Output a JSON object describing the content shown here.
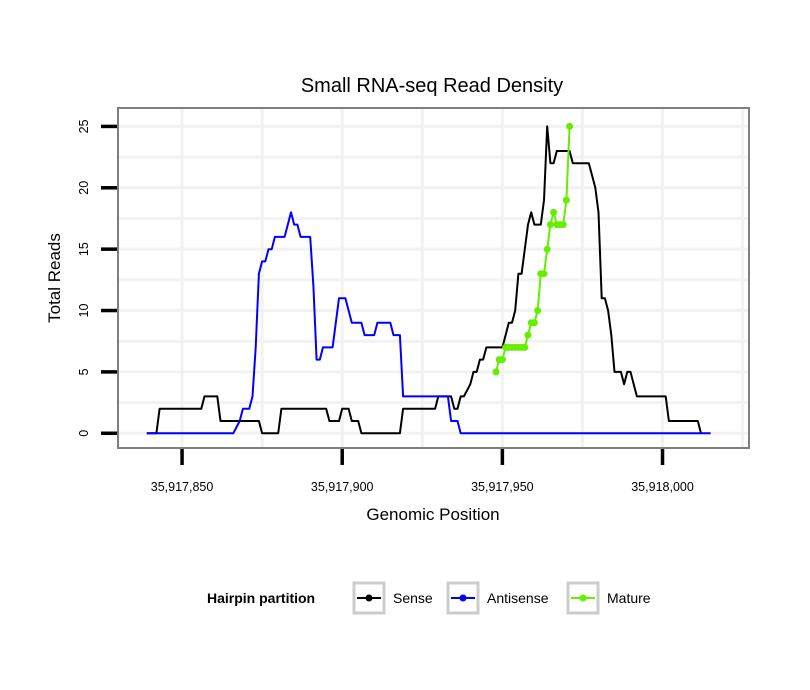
{
  "chart_data": {
    "type": "line",
    "title": "Small RNA-seq Read Density",
    "xlabel": "Genomic Position",
    "ylabel": "Total Reads",
    "xlim": [
      35917830,
      35918027
    ],
    "ylim": [
      -1.2,
      26.5
    ],
    "x_ticks": [
      35917850,
      35917900,
      35917950,
      35918000
    ],
    "x_tick_labels": [
      "35,917,850",
      "35,917,900",
      "35,917,950",
      "35,918,000"
    ],
    "y_ticks": [
      0,
      5,
      10,
      15,
      20,
      25
    ],
    "y_tick_labels": [
      "0",
      "5",
      "10",
      "15",
      "20",
      "25"
    ],
    "grid": true,
    "legend": {
      "title": "Hairpin partition",
      "position": "bottom",
      "entries": [
        "Sense",
        "Antisense",
        "Mature"
      ]
    },
    "series": [
      {
        "name": "Sense",
        "color": "#000000",
        "markers": false,
        "points": [
          [
            35917839,
            0
          ],
          [
            35917842,
            0
          ],
          [
            35917843,
            2
          ],
          [
            35917856,
            2
          ],
          [
            35917857,
            3
          ],
          [
            35917861,
            3
          ],
          [
            35917862,
            1
          ],
          [
            35917874,
            1
          ],
          [
            35917875,
            0
          ],
          [
            35917880,
            0
          ],
          [
            35917881,
            2
          ],
          [
            35917895,
            2
          ],
          [
            35917896,
            1
          ],
          [
            35917899,
            1
          ],
          [
            35917900,
            2
          ],
          [
            35917902,
            2
          ],
          [
            35917903,
            1
          ],
          [
            35917905,
            1
          ],
          [
            35917906,
            0
          ],
          [
            35917918,
            0
          ],
          [
            35917919,
            2
          ],
          [
            35917929,
            2
          ],
          [
            35917930,
            3
          ],
          [
            35917934,
            3
          ],
          [
            35917935,
            2
          ],
          [
            35917936,
            2
          ],
          [
            35917937,
            3
          ],
          [
            35917938,
            3
          ],
          [
            35917940,
            4
          ],
          [
            35917941,
            5
          ],
          [
            35917942,
            5
          ],
          [
            35917943,
            6
          ],
          [
            35917944,
            6
          ],
          [
            35917945,
            7
          ],
          [
            35917950,
            7
          ],
          [
            35917951,
            8
          ],
          [
            35917952,
            9
          ],
          [
            35917953,
            9
          ],
          [
            35917954,
            10
          ],
          [
            35917955,
            13
          ],
          [
            35917956,
            13
          ],
          [
            35917957,
            15
          ],
          [
            35917958,
            17
          ],
          [
            35917959,
            18
          ],
          [
            35917960,
            17
          ],
          [
            35917962,
            17
          ],
          [
            35917963,
            19
          ],
          [
            35917964,
            25
          ],
          [
            35917965,
            22
          ],
          [
            35917966,
            22
          ],
          [
            35917967,
            23
          ],
          [
            35917971,
            23
          ],
          [
            35917972,
            22
          ],
          [
            35917977,
            22
          ],
          [
            35917978,
            21
          ],
          [
            35917979,
            20
          ],
          [
            35917980,
            18
          ],
          [
            35917981,
            11
          ],
          [
            35917982,
            11
          ],
          [
            35917983,
            10
          ],
          [
            35917984,
            8
          ],
          [
            35917985,
            5
          ],
          [
            35917987,
            5
          ],
          [
            35917988,
            4
          ],
          [
            35917989,
            5
          ],
          [
            35917990,
            5
          ],
          [
            35917991,
            4
          ],
          [
            35917992,
            3
          ],
          [
            35918001,
            3
          ],
          [
            35918002,
            1
          ],
          [
            35918011,
            1
          ],
          [
            35918012,
            0
          ]
        ]
      },
      {
        "name": "Antisense",
        "color": "#0000ff",
        "markers": false,
        "points": [
          [
            35917839,
            0
          ],
          [
            35917866,
            0
          ],
          [
            35917868,
            1
          ],
          [
            35917869,
            2
          ],
          [
            35917871,
            2
          ],
          [
            35917872,
            3
          ],
          [
            35917873,
            7
          ],
          [
            35917874,
            13
          ],
          [
            35917875,
            14
          ],
          [
            35917876,
            14
          ],
          [
            35917877,
            15
          ],
          [
            35917878,
            15
          ],
          [
            35917879,
            16
          ],
          [
            35917882,
            16
          ],
          [
            35917883,
            17
          ],
          [
            35917884,
            18
          ],
          [
            35917885,
            17
          ],
          [
            35917886,
            17
          ],
          [
            35917887,
            16
          ],
          [
            35917890,
            16
          ],
          [
            35917891,
            12
          ],
          [
            35917892,
            6
          ],
          [
            35917893,
            6
          ],
          [
            35917894,
            7
          ],
          [
            35917897,
            7
          ],
          [
            35917898,
            9
          ],
          [
            35917899,
            11
          ],
          [
            35917901,
            11
          ],
          [
            35917902,
            10
          ],
          [
            35917903,
            9
          ],
          [
            35917906,
            9
          ],
          [
            35917907,
            8
          ],
          [
            35917910,
            8
          ],
          [
            35917911,
            9
          ],
          [
            35917915,
            9
          ],
          [
            35917916,
            8
          ],
          [
            35917918,
            8
          ],
          [
            35917919,
            3
          ],
          [
            35917933,
            3
          ],
          [
            35917934,
            1
          ],
          [
            35917936,
            1
          ],
          [
            35917937,
            0
          ],
          [
            35918015,
            0
          ]
        ]
      },
      {
        "name": "Mature",
        "color": "#66ee00",
        "markers": true,
        "points": [
          [
            35917948,
            5
          ],
          [
            35917949,
            6
          ],
          [
            35917950,
            6
          ],
          [
            35917951,
            7
          ],
          [
            35917952,
            7
          ],
          [
            35917953,
            7
          ],
          [
            35917954,
            7
          ],
          [
            35917955,
            7
          ],
          [
            35917956,
            7
          ],
          [
            35917957,
            7
          ],
          [
            35917958,
            8
          ],
          [
            35917959,
            9
          ],
          [
            35917960,
            9
          ],
          [
            35917961,
            10
          ],
          [
            35917962,
            13
          ],
          [
            35917963,
            13
          ],
          [
            35917964,
            15
          ],
          [
            35917965,
            17
          ],
          [
            35917966,
            18
          ],
          [
            35917967,
            17
          ],
          [
            35917968,
            17
          ],
          [
            35917969,
            17
          ],
          [
            35917970,
            19
          ],
          [
            35917971,
            25
          ]
        ]
      }
    ]
  }
}
